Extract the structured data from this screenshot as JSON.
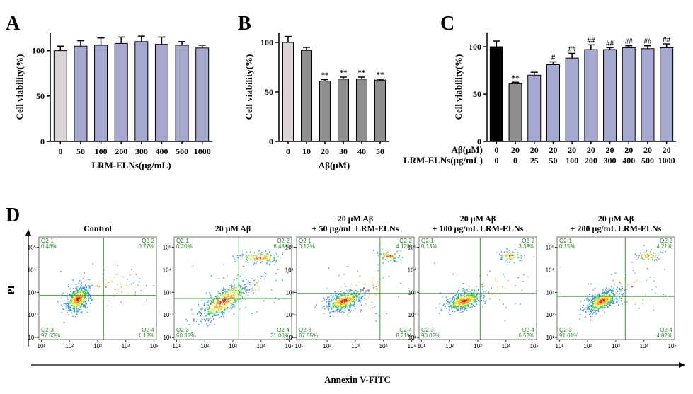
{
  "panel_labels": [
    "A",
    "B",
    "C",
    "D"
  ],
  "chart_data": [
    {
      "id": "A",
      "type": "bar",
      "ylabel": "Cell viability(%)",
      "xlabel": "LRM-ELNs(μg/mL)",
      "ylim": [
        0,
        120
      ],
      "yticks": [
        "0",
        "50",
        "100"
      ],
      "categories": [
        "0",
        "50",
        "100",
        "200",
        "300",
        "400",
        "500",
        "1000"
      ],
      "values": [
        100,
        105,
        106,
        108,
        110,
        107,
        106,
        103
      ],
      "errors": [
        5,
        6,
        8,
        7,
        6,
        8,
        4,
        3
      ],
      "colors": [
        "#d9d5d6",
        "#a6a8d0",
        "#a6a8d0",
        "#a6a8d0",
        "#a6a8d0",
        "#a6a8d0",
        "#a6a8d0",
        "#a6a8d0"
      ],
      "annotations": [
        "",
        "",
        "",
        "",
        "",
        "",
        "",
        ""
      ]
    },
    {
      "id": "B",
      "type": "bar",
      "ylabel": "Cell viability(%)",
      "xlabel": "Aβ(μM)",
      "ylim": [
        0,
        110
      ],
      "yticks": [
        "0",
        "50",
        "100"
      ],
      "categories": [
        "0",
        "10",
        "20",
        "30",
        "40",
        "50"
      ],
      "values": [
        100,
        92,
        61,
        63,
        63,
        62
      ],
      "errors": [
        6,
        3,
        1.5,
        2,
        2,
        1
      ],
      "colors": [
        "#d9d5d6",
        "#8f8f8f",
        "#8f8f8f",
        "#8f8f8f",
        "#8f8f8f",
        "#8f8f8f"
      ],
      "annotations": [
        "",
        "",
        "**",
        "**",
        "**",
        "**"
      ]
    },
    {
      "id": "C",
      "type": "bar",
      "ylabel": "Cell viability(%)",
      "ylim": [
        0,
        115
      ],
      "yticks": [
        "0",
        "50",
        "100"
      ],
      "row_labels": [
        "Aβ(μM)",
        "LRM-ELNs(μg/mL)"
      ],
      "row1": [
        "0",
        "20",
        "20",
        "20",
        "20",
        "20",
        "20",
        "20",
        "20",
        "20"
      ],
      "row2": [
        "0",
        "0",
        "25",
        "50",
        "100",
        "200",
        "300",
        "400",
        "500",
        "1000"
      ],
      "values": [
        100,
        61,
        70,
        81,
        88,
        97,
        97,
        99,
        98,
        99
      ],
      "errors": [
        6,
        1.5,
        3,
        3,
        5,
        5,
        2,
        2,
        3,
        4
      ],
      "colors": [
        "#000000",
        "#8f8f8f",
        "#a6a8d0",
        "#a6a8d0",
        "#a6a8d0",
        "#a6a8d0",
        "#a6a8d0",
        "#a6a8d0",
        "#a6a8d0",
        "#a6a8d0"
      ],
      "annotations": [
        "",
        "**",
        "",
        "#",
        "##",
        "##",
        "##",
        "##",
        "##",
        "##"
      ]
    }
  ],
  "flow": {
    "ylabel": "PI",
    "xlabel": "Annexin V-FITC",
    "xticks": [
      "10¹",
      "10²",
      "10³",
      "10⁴",
      "10⁵"
    ],
    "yticks": [
      "10¹",
      "10²",
      "10³",
      "10⁴",
      "10⁵"
    ],
    "quadrant_names": [
      "Q2-1",
      "Q2-2",
      "Q2-3",
      "Q2-4"
    ],
    "plots": [
      {
        "title1": "Control",
        "title2": "",
        "q": [
          "0.48%",
          "0.77%",
          "97.63%",
          "1.12%"
        ],
        "qx": 0.55,
        "qy": 0.57
      },
      {
        "title1": "20 μM Aβ",
        "title2": "",
        "q": [
          "0.20%",
          "8.48%",
          "60.32%",
          "31.00%"
        ],
        "qx": 0.55,
        "qy": 0.6
      },
      {
        "title1": "20 μM Aβ",
        "title2": "+ 50 μg/mL LRM-ELNs",
        "q": [
          "0.12%",
          "4.12%",
          "87.55%",
          "8.21%"
        ],
        "qx": 0.71,
        "qy": 0.55
      },
      {
        "title1": "20 μM Aβ",
        "title2": "+ 100 μg/mL LRM-ELNs",
        "q": [
          "0.13%",
          "3.33%",
          "90.02%",
          "6.52%"
        ],
        "qx": 0.52,
        "qy": 0.55
      },
      {
        "title1": "20 μM Aβ",
        "title2": "+ 200 μg/mL LRM-ELNs",
        "q": [
          "0.15%",
          "4.21%",
          "91.01%",
          "4.82%"
        ],
        "qx": 0.58,
        "qy": 0.58
      }
    ]
  }
}
